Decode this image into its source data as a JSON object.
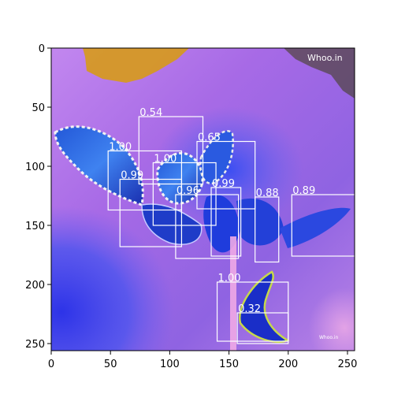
{
  "image": {
    "width": 256,
    "height": 256,
    "x_ticks": [
      0,
      50,
      100,
      150,
      200,
      250
    ],
    "y_ticks": [
      0,
      50,
      100,
      150,
      200,
      250
    ],
    "watermark_top": "Whoo.in",
    "watermark_bottom": "Whoo.in"
  },
  "detections": [
    {
      "score": "0.54",
      "x0": 74,
      "y0": 58,
      "x1": 128,
      "y1": 115
    },
    {
      "score": "0.65",
      "x0": 123,
      "y0": 79,
      "x1": 172,
      "y1": 136
    },
    {
      "score": "1.00",
      "x0": 48,
      "y0": 87,
      "x1": 110,
      "y1": 137
    },
    {
      "score": "1.00",
      "x0": 86,
      "y0": 97,
      "x1": 139,
      "y1": 150
    },
    {
      "score": "0.99",
      "x0": 58,
      "y0": 111,
      "x1": 110,
      "y1": 168
    },
    {
      "score": "0.99",
      "x0": 135,
      "y0": 118,
      "x1": 160,
      "y1": 176
    },
    {
      "score": "0.96",
      "x0": 105,
      "y0": 124,
      "x1": 158,
      "y1": 178
    },
    {
      "score": "0.88",
      "x0": 172,
      "y0": 126,
      "x1": 192,
      "y1": 181
    },
    {
      "score": "0.89",
      "x0": 203,
      "y0": 124,
      "x1": 257,
      "y1": 176
    },
    {
      "score": "1.00",
      "x0": 140,
      "y0": 198,
      "x1": 200,
      "y1": 248
    },
    {
      "score": "0.32",
      "x0": 157,
      "y0": 224,
      "x1": 200,
      "y1": 250
    }
  ]
}
